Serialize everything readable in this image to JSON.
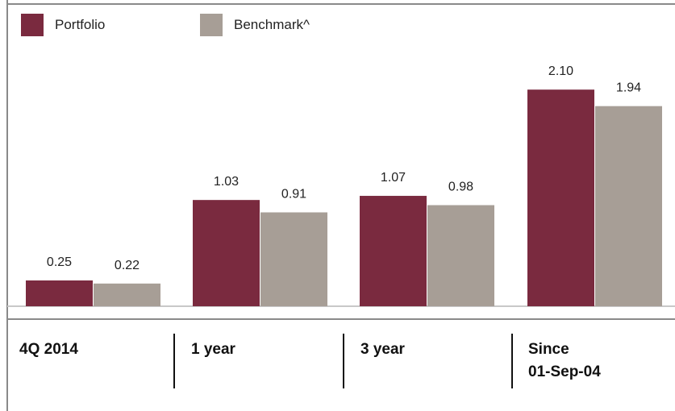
{
  "chart_data": {
    "type": "bar",
    "categories": [
      "4Q 2014",
      "1 year",
      "3 year",
      "Since\n01-Sep-04"
    ],
    "series": [
      {
        "name": "Portfolio",
        "values": [
          0.25,
          1.03,
          1.07,
          2.1
        ],
        "labels": [
          "0.25",
          "1.03",
          "1.07",
          "2.10"
        ]
      },
      {
        "name": "Benchmark^",
        "values": [
          0.22,
          0.91,
          0.98,
          1.94
        ],
        "labels": [
          "0.22",
          "0.91",
          "0.98",
          "1.94"
        ]
      }
    ],
    "ylim": [
      0,
      2.5
    ],
    "grid": false,
    "legend": "top-left",
    "colors": {
      "Portfolio": "#7a2a3f",
      "Benchmark^": "#a79e96"
    }
  }
}
